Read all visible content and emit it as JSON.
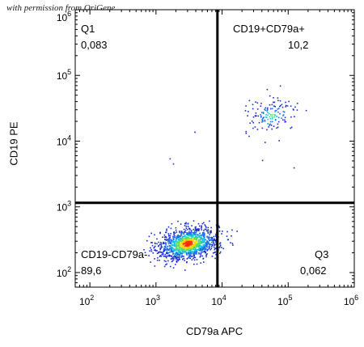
{
  "watermark": "with permission from OriGene",
  "chart_data": {
    "type": "scatter",
    "xlabel": "CD79a APC",
    "ylabel": "CD19 PE",
    "xscale": "log",
    "yscale": "log",
    "xlim": [
      60,
      1000000
    ],
    "ylim": [
      60,
      1000000
    ],
    "xticks": [
      {
        "base": "10",
        "exp": "2"
      },
      {
        "base": "10",
        "exp": "3"
      },
      {
        "base": "10",
        "exp": "4"
      },
      {
        "base": "10",
        "exp": "5"
      },
      {
        "base": "10",
        "exp": "6"
      }
    ],
    "yticks": [
      {
        "base": "10",
        "exp": "2"
      },
      {
        "base": "10",
        "exp": "3"
      },
      {
        "base": "10",
        "exp": "4"
      },
      {
        "base": "10",
        "exp": "5"
      },
      {
        "base": "10",
        "exp": "6"
      }
    ],
    "gates": {
      "x": 8500,
      "y": 1150
    },
    "quadrants": [
      {
        "name": "Q1",
        "value": "0,083",
        "position": "top-left"
      },
      {
        "name": "CD19+CD79a+",
        "value": "10,2",
        "position": "top-right"
      },
      {
        "name": "CD19-CD79a-",
        "value": "89,6",
        "position": "bottom-left"
      },
      {
        "name": "Q3",
        "value": "0,062",
        "position": "bottom-right"
      }
    ],
    "clusters": [
      {
        "center": [
          3000,
          280
        ],
        "spread": [
          0.23,
          0.12
        ],
        "percent": 89.6
      },
      {
        "center": [
          55000,
          25000
        ],
        "spread": [
          0.2,
          0.13
        ],
        "percent": 10.2
      }
    ],
    "outliers": [
      [
        1600,
        5500
      ],
      [
        1800,
        4600
      ],
      [
        3800,
        14000
      ],
      [
        120000,
        4000
      ],
      [
        40000,
        5200
      ]
    ]
  }
}
